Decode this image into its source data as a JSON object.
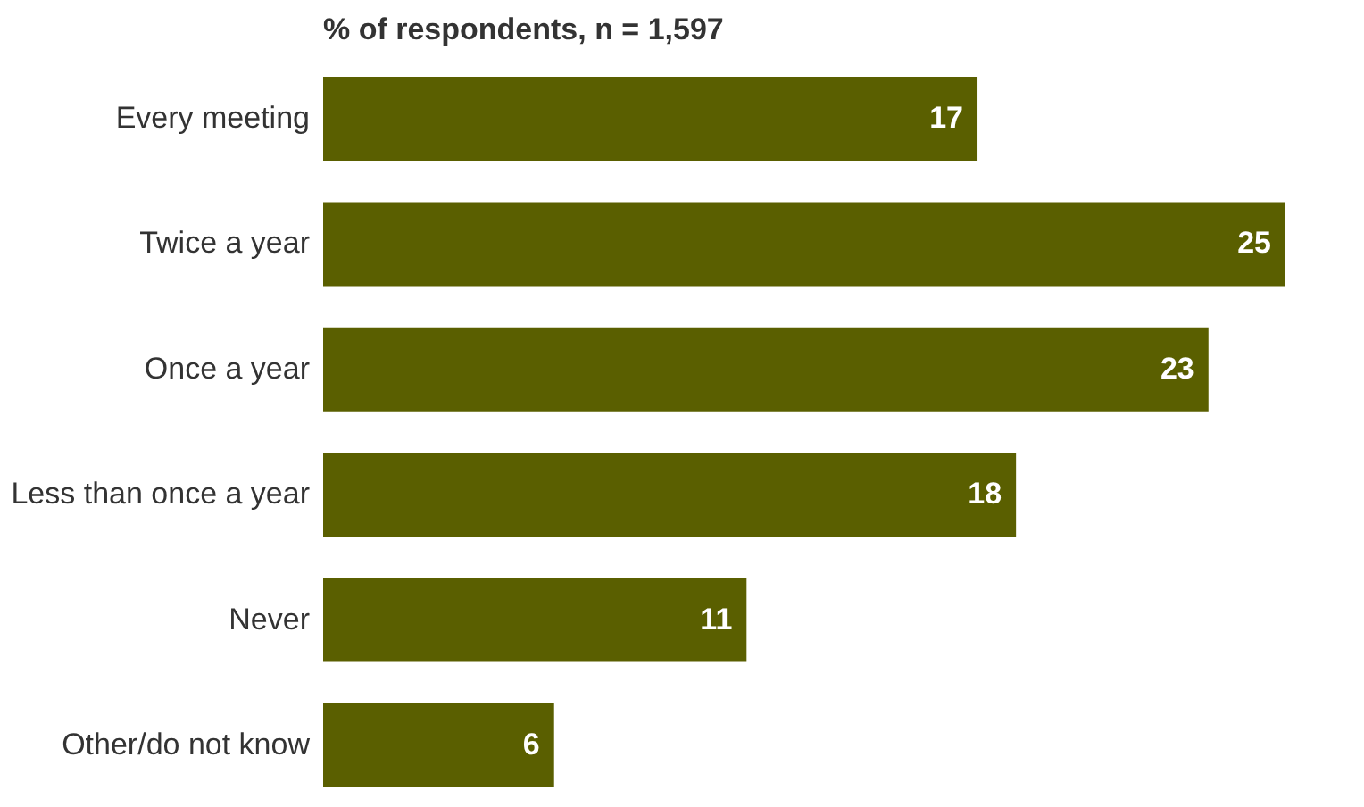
{
  "chart_data": {
    "type": "bar",
    "orientation": "horizontal",
    "title": "% of respondents, n = 1,597",
    "categories": [
      "Every meeting",
      "Twice a year",
      "Once a year",
      "Less than once a year",
      "Never",
      "Other/do not know"
    ],
    "values": [
      17,
      25,
      23,
      18,
      11,
      6
    ],
    "color": "#5a5f00",
    "data_labels": true
  }
}
